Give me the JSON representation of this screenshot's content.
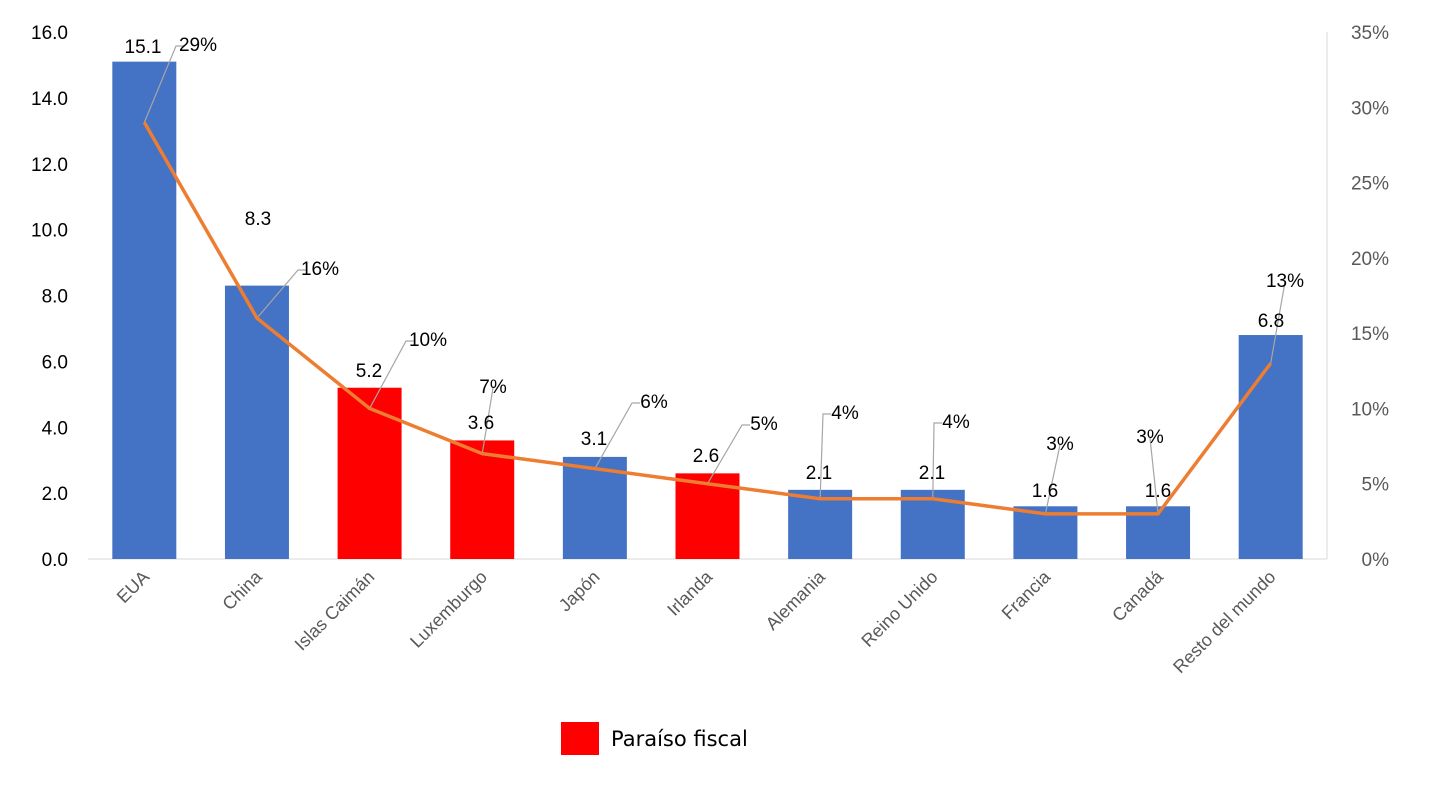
{
  "chart_data": {
    "type": "bar+line",
    "categories": [
      "EUA",
      "China",
      "Islas Caimán",
      "Luxemburgo",
      "Japón",
      "Irlanda",
      "Alemania",
      "Reino Unido",
      "Francia",
      "Canadá",
      "Resto del mundo"
    ],
    "series": [
      {
        "type": "bar",
        "values": [
          15.1,
          8.3,
          5.2,
          3.6,
          3.1,
          2.6,
          2.1,
          2.1,
          1.6,
          1.6,
          6.8
        ],
        "value_labels": [
          "15.1",
          "8.3",
          "5.2",
          "3.6",
          "3.1",
          "2.6",
          "2.1",
          "2.1",
          "1.6",
          "1.6",
          "6.8"
        ],
        "axis": "left"
      },
      {
        "type": "line",
        "values": [
          29,
          16,
          10,
          7,
          6,
          5,
          4,
          4,
          3,
          3,
          13
        ],
        "value_labels": [
          "29%",
          "16%",
          "10%",
          "7%",
          "6%",
          "5%",
          "4%",
          "4%",
          "3%",
          "3%",
          "13%"
        ],
        "axis": "right",
        "color": "#ED7D31"
      }
    ],
    "highlight": [
      false,
      false,
      true,
      true,
      false,
      true,
      false,
      false,
      false,
      false,
      false
    ],
    "colors": {
      "bar": "#4472C4",
      "highlight": "#FF0000",
      "line": "#ED7D31"
    },
    "left_axis": {
      "ylim": [
        0,
        16
      ],
      "ticks": [
        "0.0",
        "2.0",
        "4.0",
        "6.0",
        "8.0",
        "10.0",
        "12.0",
        "14.0",
        "16.0"
      ]
    },
    "right_axis": {
      "ylim": [
        0,
        35
      ],
      "ticks": [
        "0%",
        "5%",
        "10%",
        "15%",
        "20%",
        "25%",
        "30%",
        "35%"
      ]
    },
    "grid": false,
    "legend": {
      "position": "bottom",
      "entries": [
        {
          "label": "Paraíso fiscal",
          "color": "#FF0000"
        }
      ]
    }
  }
}
